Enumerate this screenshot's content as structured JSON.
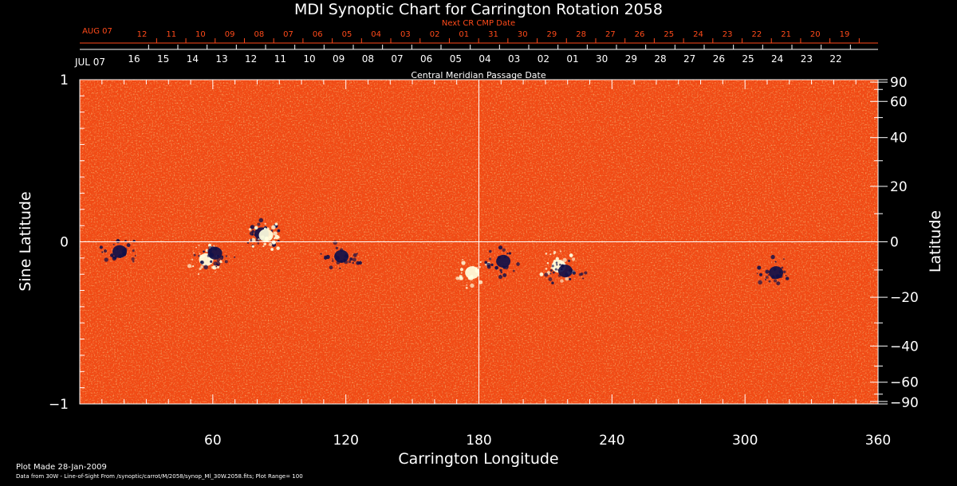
{
  "chart_data": {
    "type": "heatmap",
    "title": "MDI Synoptic Chart for Carrington Rotation 2058",
    "xlabel": "Carrington Longitude",
    "ylabel_left": "Sine Latitude",
    "ylabel_right": "Latitude",
    "xlim": [
      0,
      360
    ],
    "ylim": [
      -1,
      1
    ],
    "x_ticks": [
      "60",
      "120",
      "180",
      "240",
      "300",
      "360"
    ],
    "y_ticks_left": [
      "1",
      "0",
      "−1"
    ],
    "y_ticks_right": [
      "90",
      "60",
      "40",
      "20",
      "0",
      "−20",
      "−40",
      "−60",
      "−90"
    ],
    "top_axis_label": "Central Meridian Passage Date",
    "top_axis_start_label": "JUL 07",
    "top_axis_dates": [
      "16",
      "15",
      "14",
      "13",
      "12",
      "11",
      "10",
      "09",
      "08",
      "07",
      "06",
      "05",
      "04",
      "03",
      "02",
      "01",
      "30",
      "29",
      "28",
      "27",
      "26",
      "25",
      "24",
      "23",
      "22"
    ],
    "next_cr_label": "Next CR CMP Date",
    "next_cr_start_label": "AUG 07",
    "next_cr_dates": [
      "12",
      "11",
      "10",
      "09",
      "08",
      "07",
      "06",
      "05",
      "04",
      "03",
      "02",
      "01",
      "31",
      "30",
      "29",
      "28",
      "27",
      "26",
      "25",
      "24",
      "23",
      "22",
      "21",
      "20",
      "19"
    ],
    "footer_line1": "Plot Made 28-Jan-2009",
    "footer_line2": "Data from 30W - Line-of-Sight From /synoptic/carrot/M/2058/synop_Ml_30W.2058.fits; Plot Range=  100",
    "plot_range": 100,
    "active_regions": [
      {
        "lon": 18,
        "sinlat": -0.06,
        "polarity": "negative"
      },
      {
        "lon": 57,
        "sinlat": -0.11,
        "polarity": "positive"
      },
      {
        "lon": 61,
        "sinlat": -0.07,
        "polarity": "negative"
      },
      {
        "lon": 82,
        "sinlat": 0.05,
        "polarity": "negative"
      },
      {
        "lon": 84,
        "sinlat": 0.04,
        "polarity": "positive"
      },
      {
        "lon": 118,
        "sinlat": -0.09,
        "polarity": "negative"
      },
      {
        "lon": 177,
        "sinlat": -0.19,
        "polarity": "positive"
      },
      {
        "lon": 191,
        "sinlat": -0.12,
        "polarity": "negative"
      },
      {
        "lon": 216,
        "sinlat": -0.15,
        "polarity": "positive"
      },
      {
        "lon": 219,
        "sinlat": -0.18,
        "polarity": "negative"
      },
      {
        "lon": 314,
        "sinlat": -0.19,
        "polarity": "negative"
      }
    ],
    "colors": {
      "background": "#000000",
      "field_base": "#f24a14",
      "positive": "#ffffe0",
      "negative": "#10104a",
      "annotation": "#ff4a1a",
      "axes": "#ffffff"
    }
  }
}
